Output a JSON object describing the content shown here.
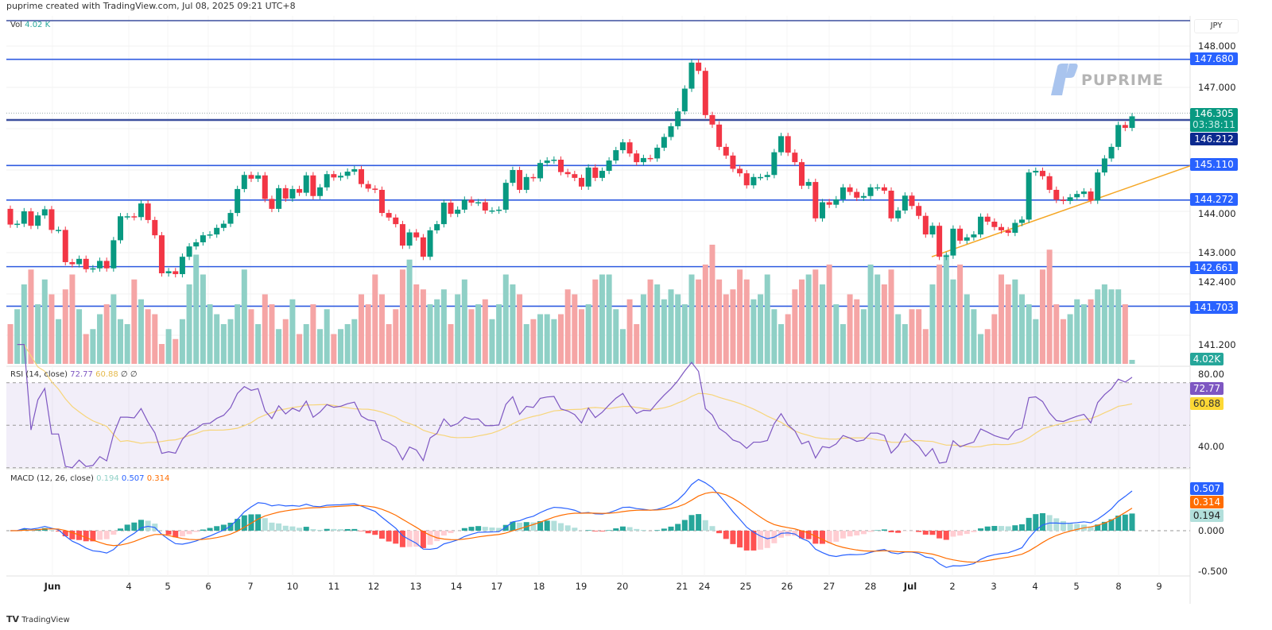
{
  "header": {
    "attribution": "puprime created with TradingView.com, Jul 08, 2025 09:21 UTC+8"
  },
  "watermark": {
    "brand": "PUPRIME",
    "color": "#a9c4ee"
  },
  "footer": {
    "logo_text": "TradingView"
  },
  "volume_legend": {
    "label": "Vol",
    "value": "4.02 K"
  },
  "rsi_legend": {
    "label": "RSI (14, close)",
    "rsi": "72.77",
    "ma": "60.88",
    "extra1": "∅",
    "extra2": "∅"
  },
  "macd_legend": {
    "label": "MACD (12, 26, close)",
    "hist": "0.194",
    "macd": "0.507",
    "signal": "0.314"
  },
  "price_axis": {
    "currency": "JPY",
    "ticks": [
      "148.000",
      "147.000",
      "144.000",
      "143.000",
      "142.400",
      "141.200"
    ],
    "badges": {
      "level1": "147.680",
      "current": "146.305",
      "countdown": "03:38:11",
      "level2": "146.212",
      "level3": "145.110",
      "level4": "144.272",
      "level5": "142.661",
      "level6": "141.703",
      "volume": "4.02K"
    }
  },
  "rsi_axis": {
    "ticks": [
      "80.00",
      "40.00"
    ],
    "rsi_badge": "72.77",
    "ma_badge": "60.88"
  },
  "macd_axis": {
    "ticks": [
      "0.000",
      "-0.500"
    ],
    "macd_badge": "0.507",
    "signal_badge": "0.314",
    "hist_badge": "0.194"
  },
  "time_axis": [
    "Jun",
    "4",
    "5",
    "6",
    "7",
    "10",
    "11",
    "12",
    "13",
    "14",
    "17",
    "18",
    "19",
    "20",
    "21",
    "24",
    "25",
    "26",
    "27",
    "28",
    "Jul",
    "2",
    "3",
    "4",
    "5",
    "8",
    "9"
  ],
  "colors": {
    "up": "#089981",
    "down": "#f23645",
    "vol_up": "#8fd0c6",
    "vol_down": "#f5a5a5",
    "level_line": "#2f5be0",
    "trendline": "#f5a623",
    "rsi": "#7e57c2",
    "rsi_ma": "#f7d57a",
    "macd": "#2962ff",
    "signal": "#ff6d00"
  },
  "chart_data": {
    "type": "candlestick",
    "symbol_currency": "JPY",
    "price_range": [
      141.0,
      148.6
    ],
    "horizontal_levels": [
      148.6,
      147.68,
      146.212,
      145.11,
      144.272,
      142.661,
      141.703
    ],
    "trendline": {
      "from_price": 142.9,
      "to_price": 145.1
    },
    "first_open": 144.06,
    "close": [
      143.68,
      143.7,
      144.0,
      143.65,
      143.9,
      144.05,
      143.55,
      143.55,
      142.77,
      142.72,
      142.85,
      142.6,
      142.62,
      142.8,
      142.62,
      143.3,
      143.88,
      143.88,
      143.86,
      144.19,
      143.79,
      143.42,
      142.5,
      142.55,
      142.48,
      142.9,
      143.15,
      143.25,
      143.42,
      143.44,
      143.6,
      143.7,
      143.96,
      144.54,
      144.88,
      144.79,
      144.87,
      144.3,
      144.06,
      144.56,
      144.31,
      144.54,
      144.45,
      144.87,
      144.37,
      144.58,
      144.9,
      144.82,
      144.86,
      144.96,
      145.02,
      144.66,
      144.55,
      144.52,
      143.96,
      143.85,
      143.69,
      143.17,
      143.49,
      143.37,
      142.9,
      143.54,
      143.69,
      144.21,
      143.94,
      144.04,
      144.28,
      144.21,
      144.22,
      144.02,
      144.02,
      144.04,
      144.69,
      145.0,
      144.52,
      144.83,
      144.8,
      145.17,
      145.23,
      145.25,
      144.95,
      144.9,
      144.81,
      144.6,
      145.06,
      144.81,
      144.98,
      145.23,
      145.48,
      145.67,
      145.4,
      145.19,
      145.29,
      145.28,
      145.54,
      145.8,
      146.06,
      146.42,
      146.97,
      147.6,
      147.4,
      146.33,
      146.1,
      145.56,
      145.35,
      145.03,
      144.92,
      144.63,
      144.83,
      144.83,
      144.88,
      145.43,
      145.82,
      145.42,
      145.19,
      144.62,
      144.71,
      143.83,
      144.22,
      144.16,
      144.29,
      144.58,
      144.47,
      144.33,
      144.37,
      144.58,
      144.58,
      144.5,
      143.83,
      144.02,
      144.38,
      144.13,
      143.89,
      143.44,
      143.65,
      142.9,
      142.93,
      143.58,
      143.29,
      143.37,
      143.44,
      143.87,
      143.75,
      143.62,
      143.54,
      143.48,
      143.72,
      143.8,
      144.94,
      144.98,
      144.85,
      144.52,
      144.28,
      144.25,
      144.34,
      144.42,
      144.48,
      144.26,
      144.94,
      145.28,
      145.56,
      146.09,
      146.02,
      146.3
    ],
    "volume_k": [
      40,
      55,
      80,
      95,
      60,
      85,
      70,
      45,
      75,
      90,
      55,
      30,
      35,
      50,
      60,
      70,
      45,
      40,
      85,
      65,
      55,
      50,
      20,
      35,
      25,
      45,
      80,
      110,
      90,
      60,
      50,
      40,
      45,
      60,
      95,
      55,
      40,
      70,
      60,
      35,
      45,
      65,
      30,
      40,
      60,
      35,
      55,
      30,
      35,
      40,
      45,
      70,
      60,
      90,
      70,
      40,
      55,
      95,
      105,
      80,
      75,
      60,
      65,
      75,
      40,
      70,
      85,
      55,
      60,
      65,
      45,
      60,
      90,
      80,
      70,
      40,
      45,
      50,
      50,
      45,
      50,
      75,
      70,
      55,
      60,
      85,
      90,
      90,
      55,
      35,
      65,
      40,
      70,
      85,
      80,
      65,
      75,
      70,
      60,
      90,
      85,
      100,
      120,
      85,
      70,
      75,
      95,
      85,
      65,
      70,
      90,
      55,
      40,
      50,
      75,
      85,
      90,
      95,
      80,
      100,
      60,
      40,
      70,
      65,
      55,
      100,
      90,
      80,
      95,
      50,
      40,
      55,
      55,
      35,
      80,
      100,
      110,
      85,
      100,
      70,
      55,
      30,
      35,
      50,
      90,
      80,
      85,
      70,
      60,
      45,
      95,
      115,
      60,
      45,
      50,
      65,
      60,
      65,
      75,
      80,
      75,
      75,
      60,
      4.02
    ],
    "rsi_range": [
      25,
      85
    ],
    "rsi_bands": [
      70,
      50,
      30
    ],
    "macd_range": [
      -0.65,
      0.75
    ]
  }
}
